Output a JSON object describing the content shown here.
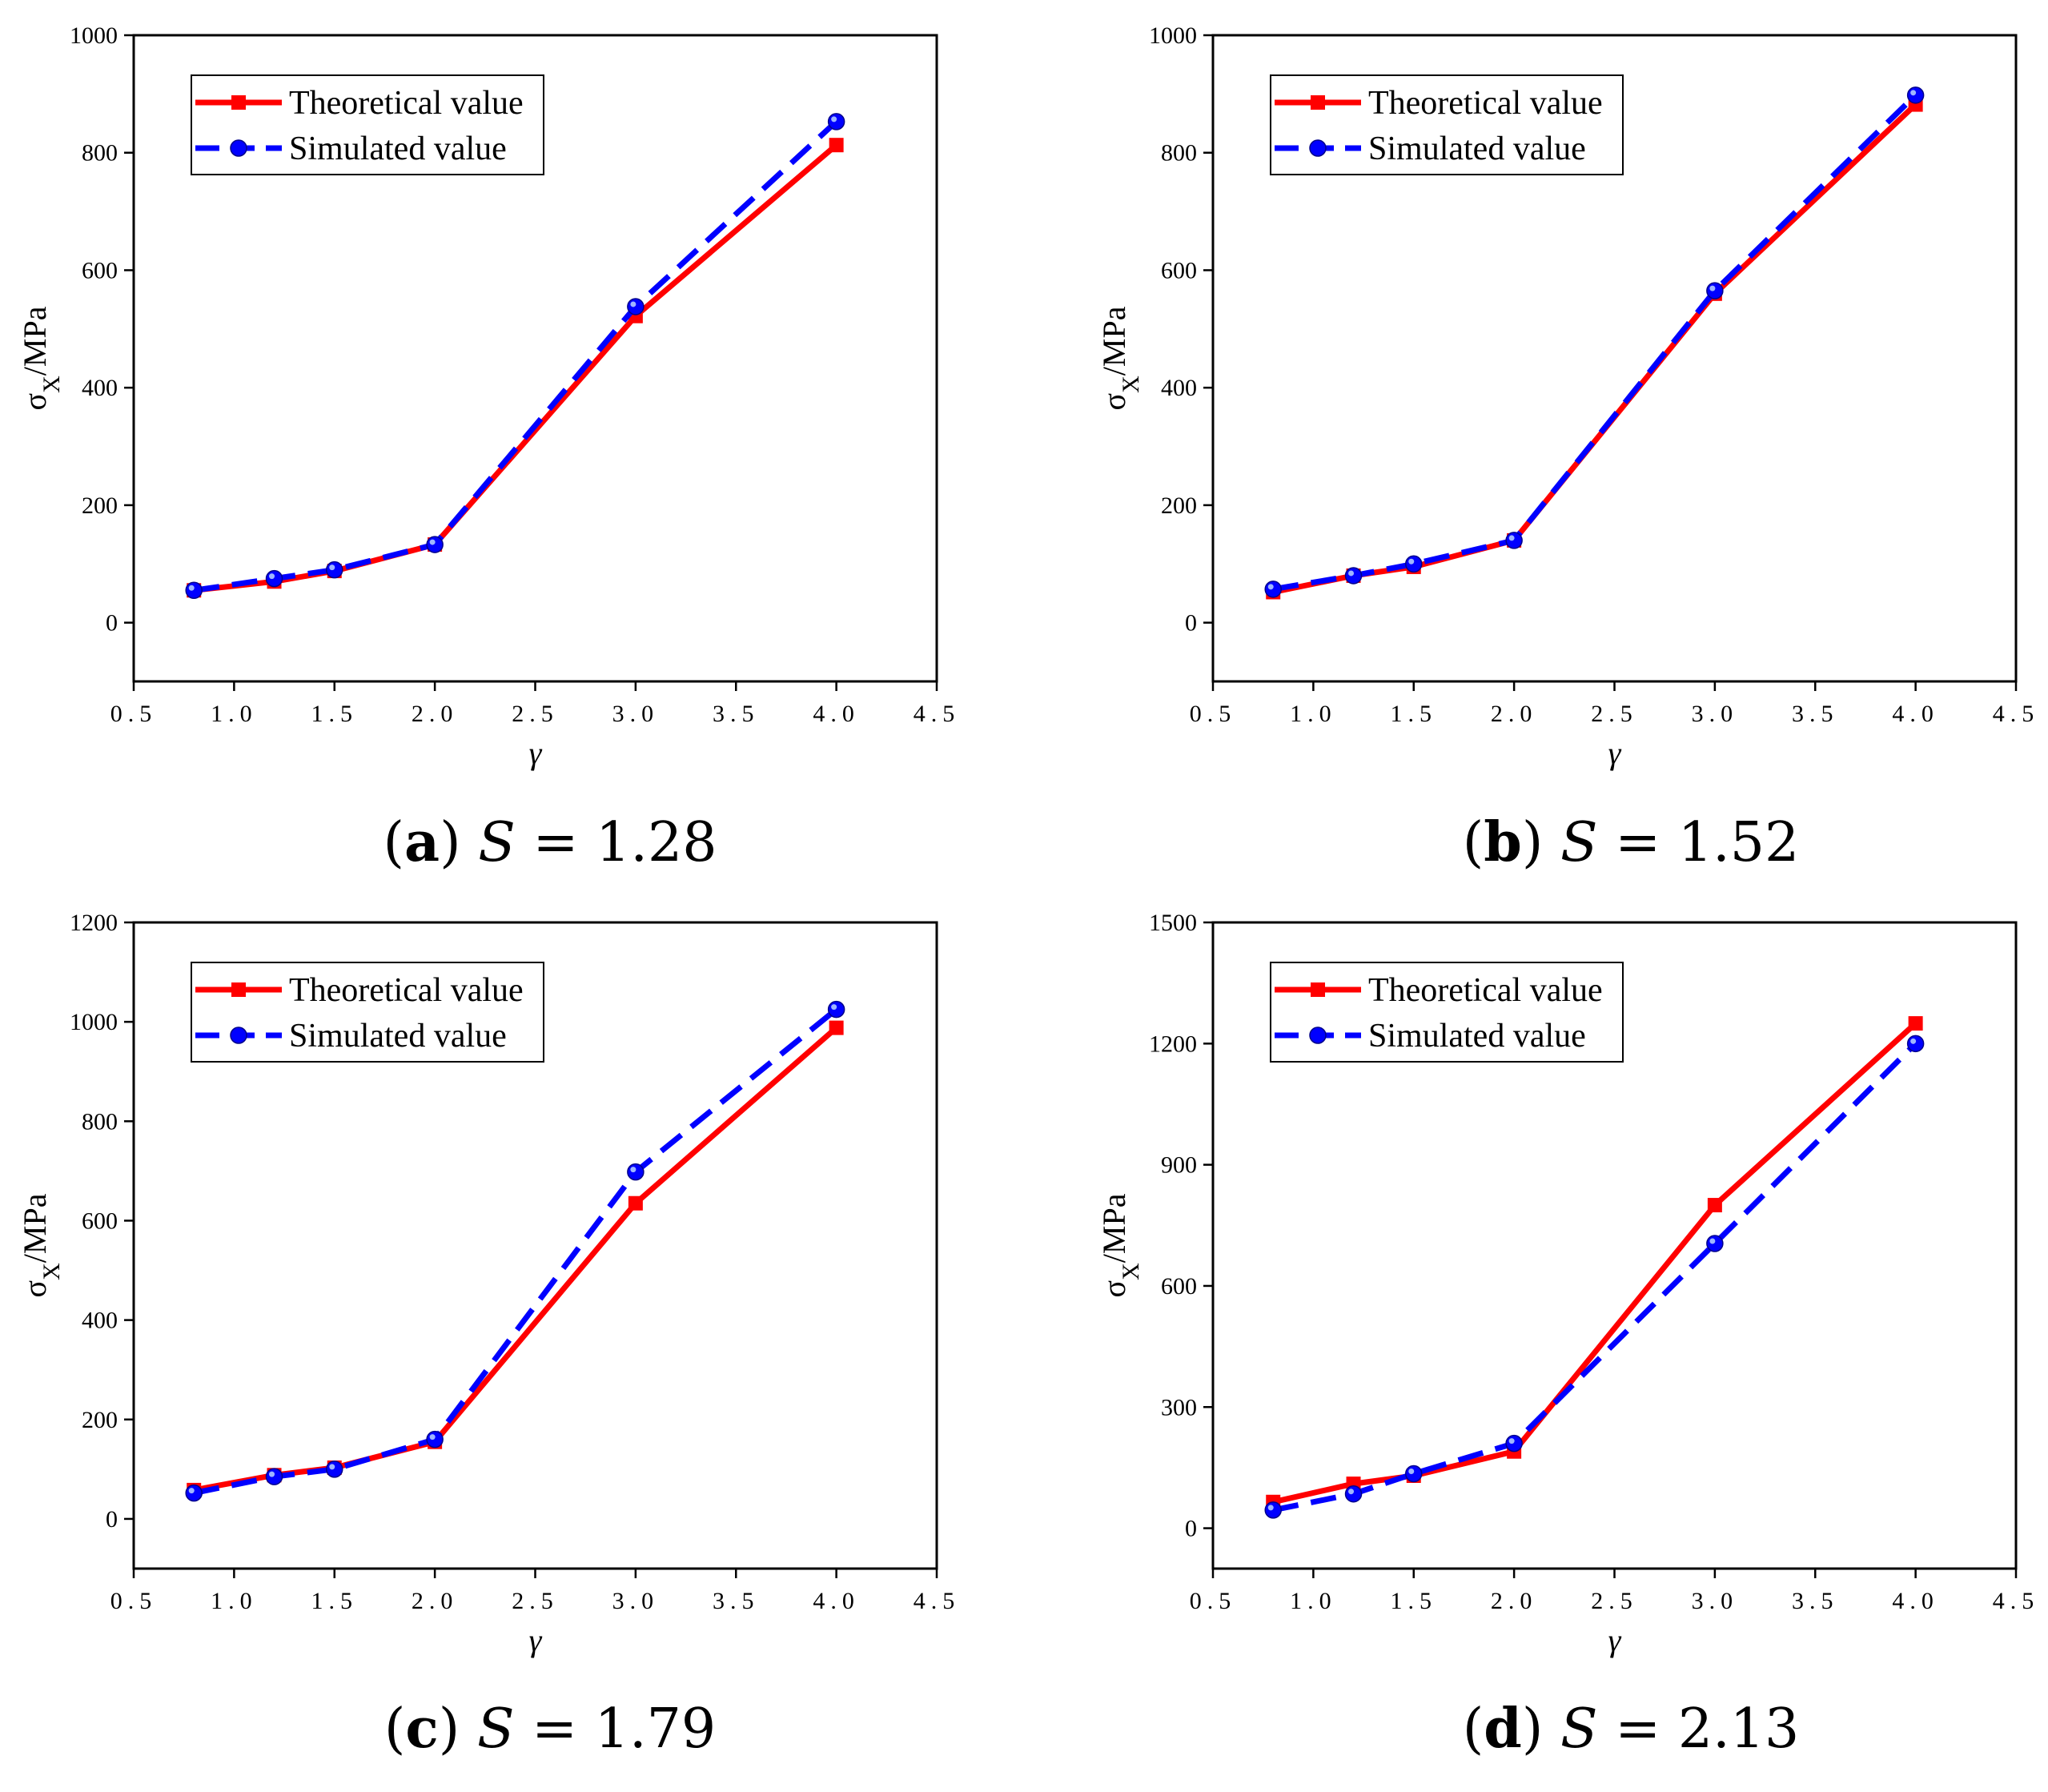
{
  "figure": {
    "captions": [
      {
        "letter": "a",
        "symbol": "S",
        "value": "1.28"
      },
      {
        "letter": "b",
        "symbol": "S",
        "value": "1.52"
      },
      {
        "letter": "c",
        "symbol": "S",
        "value": "1.79"
      },
      {
        "letter": "d",
        "symbol": "S",
        "value": "2.13"
      }
    ]
  },
  "colors": {
    "theoretical": "#ff0000",
    "simulated": "#0000ff",
    "axis": "#000000"
  },
  "chart_data": [
    {
      "type": "line",
      "panel": "a",
      "xlabel": "γ",
      "ylabel_main": "σ",
      "ylabel_sub": "X",
      "ylabel_unit": "/MPa",
      "xlim": [
        0.5,
        4.5
      ],
      "ylim": [
        -100,
        1000
      ],
      "xticks": [
        "0.5",
        "1.0",
        "1.5",
        "2.0",
        "2.5",
        "3.0",
        "3.5",
        "4.0",
        "4.5"
      ],
      "yticks": [
        "0",
        "200",
        "400",
        "600",
        "800",
        "1000"
      ],
      "legend_position": "top-left",
      "x": [
        0.8,
        1.2,
        1.5,
        2.0,
        3.0,
        4.0
      ],
      "series": [
        {
          "name": "Theoretical value",
          "marker": "square",
          "style": "solid",
          "values": [
            55,
            70,
            88,
            133,
            522,
            813
          ]
        },
        {
          "name": "Simulated value",
          "marker": "circle",
          "style": "dashed",
          "values": [
            55,
            75,
            90,
            133,
            538,
            853
          ]
        }
      ]
    },
    {
      "type": "line",
      "panel": "b",
      "xlabel": "γ",
      "ylabel_main": "σ",
      "ylabel_sub": "X",
      "ylabel_unit": "/MPa",
      "xlim": [
        0.5,
        4.5
      ],
      "ylim": [
        -100,
        1000
      ],
      "xticks": [
        "0.5",
        "1.0",
        "1.5",
        "2.0",
        "2.5",
        "3.0",
        "3.5",
        "4.0",
        "4.5"
      ],
      "yticks": [
        "0",
        "200",
        "400",
        "600",
        "800",
        "1000"
      ],
      "legend_position": "top-left",
      "x": [
        0.8,
        1.2,
        1.5,
        2.0,
        3.0,
        4.0
      ],
      "series": [
        {
          "name": "Theoretical value",
          "marker": "square",
          "style": "solid",
          "values": [
            52,
            80,
            95,
            140,
            560,
            882
          ]
        },
        {
          "name": "Simulated value",
          "marker": "circle",
          "style": "dashed",
          "values": [
            57,
            80,
            100,
            140,
            565,
            898
          ]
        }
      ]
    },
    {
      "type": "line",
      "panel": "c",
      "xlabel": "γ",
      "ylabel_main": "σ",
      "ylabel_sub": "X",
      "ylabel_unit": "/MPa",
      "xlim": [
        0.5,
        4.5
      ],
      "ylim": [
        -100,
        1200
      ],
      "xticks": [
        "0.5",
        "1.0",
        "1.5",
        "2.0",
        "2.5",
        "3.0",
        "3.5",
        "4.0",
        "4.5"
      ],
      "yticks": [
        "0",
        "200",
        "400",
        "600",
        "800",
        "1000",
        "1200"
      ],
      "legend_position": "top-left",
      "x": [
        0.8,
        1.2,
        1.5,
        2.0,
        3.0,
        4.0
      ],
      "series": [
        {
          "name": "Theoretical value",
          "marker": "square",
          "style": "solid",
          "values": [
            58,
            88,
            103,
            155,
            635,
            988
          ]
        },
        {
          "name": "Simulated value",
          "marker": "circle",
          "style": "dashed",
          "values": [
            52,
            85,
            100,
            160,
            698,
            1025
          ]
        }
      ]
    },
    {
      "type": "line",
      "panel": "d",
      "xlabel": "γ",
      "ylabel_main": "σ",
      "ylabel_sub": "X",
      "ylabel_unit": "/MPa",
      "xlim": [
        0.5,
        4.5
      ],
      "ylim": [
        -100,
        1500
      ],
      "xticks": [
        "0.5",
        "1.0",
        "1.5",
        "2.0",
        "2.5",
        "3.0",
        "3.5",
        "4.0",
        "4.5"
      ],
      "yticks": [
        "0",
        "300",
        "600",
        "900",
        "1200",
        "1500"
      ],
      "legend_position": "top-left",
      "x": [
        0.8,
        1.2,
        1.5,
        2.0,
        3.0,
        4.0
      ],
      "series": [
        {
          "name": "Theoretical value",
          "marker": "square",
          "style": "solid",
          "values": [
            65,
            110,
            130,
            190,
            800,
            1250
          ]
        },
        {
          "name": "Simulated value",
          "marker": "circle",
          "style": "dashed",
          "values": [
            45,
            85,
            135,
            210,
            705,
            1200
          ]
        }
      ]
    }
  ]
}
